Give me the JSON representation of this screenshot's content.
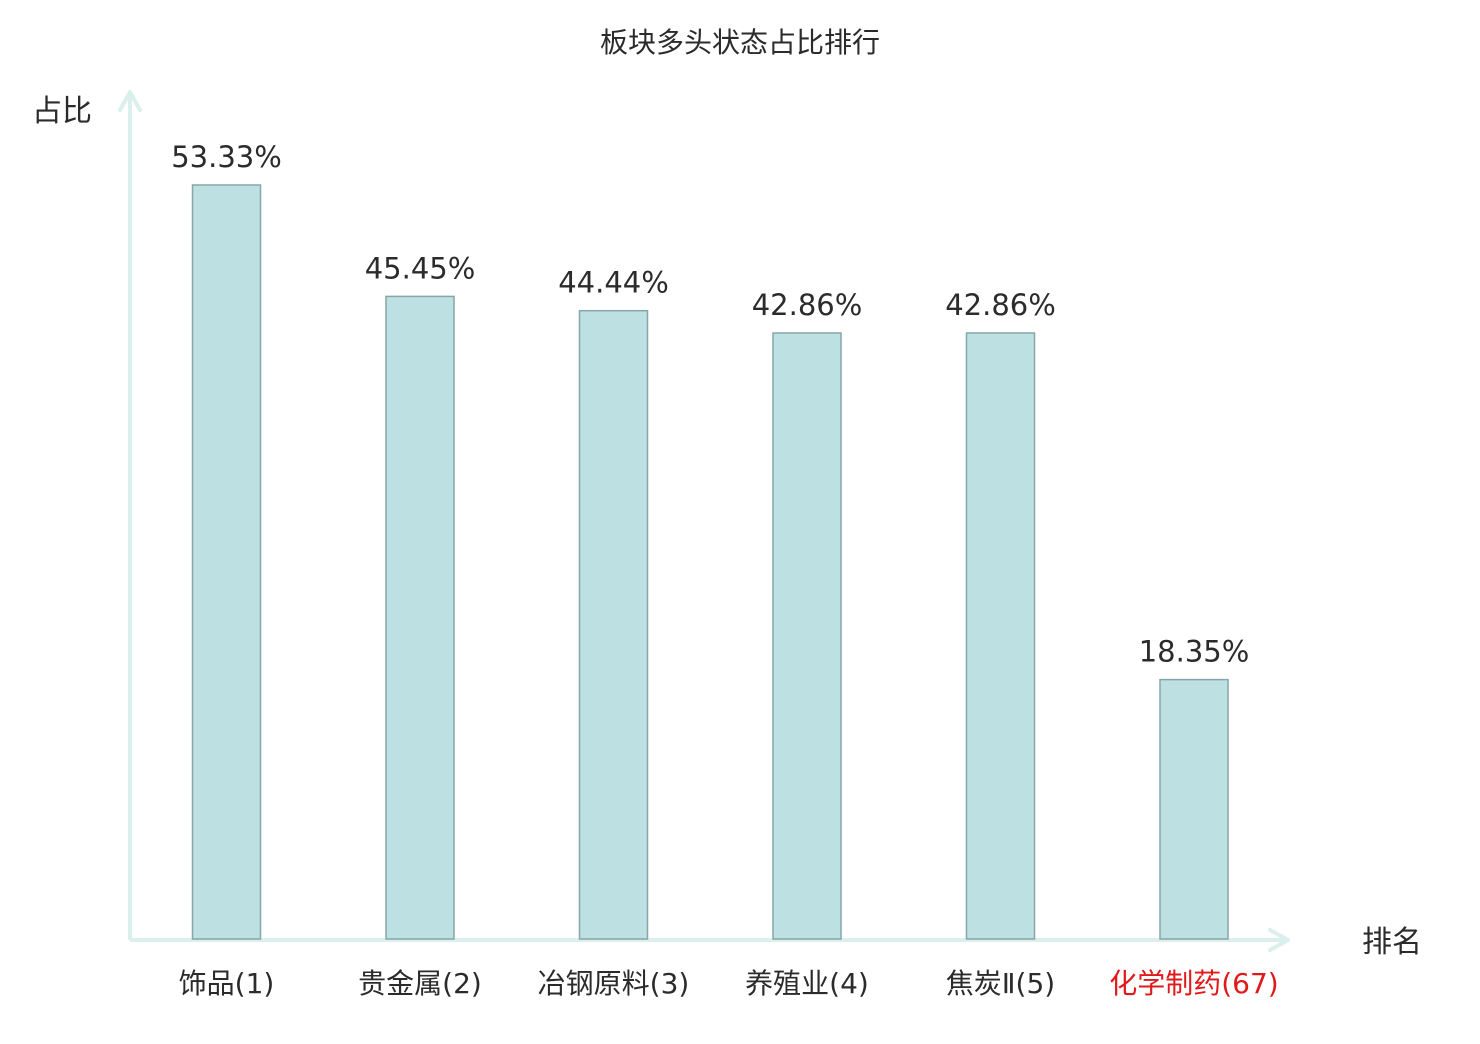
{
  "chart_data": {
    "type": "bar",
    "title": "板块多头状态占比排行",
    "ylabel": "占比",
    "xlabel": "排名",
    "categories": [
      "饰品(1)",
      "贵金属(2)",
      "冶钢原料(3)",
      "养殖业(4)",
      "焦炭Ⅱ(5)",
      "化学制药(67)"
    ],
    "values": [
      53.33,
      45.45,
      44.44,
      42.86,
      42.86,
      18.35
    ],
    "value_labels": [
      "53.33%",
      "45.45%",
      "44.44%",
      "42.86%",
      "42.86%",
      "18.35%"
    ],
    "highlight_index": 5,
    "ylim": [
      0,
      53.33
    ],
    "grid": false,
    "legend": "none"
  },
  "colors": {
    "bar_fill": "#bde0e2",
    "bar_stroke": "#86a6a8",
    "axis": "#dbefec",
    "text": "#2b2b2b",
    "highlight_text": "#e0191b"
  }
}
